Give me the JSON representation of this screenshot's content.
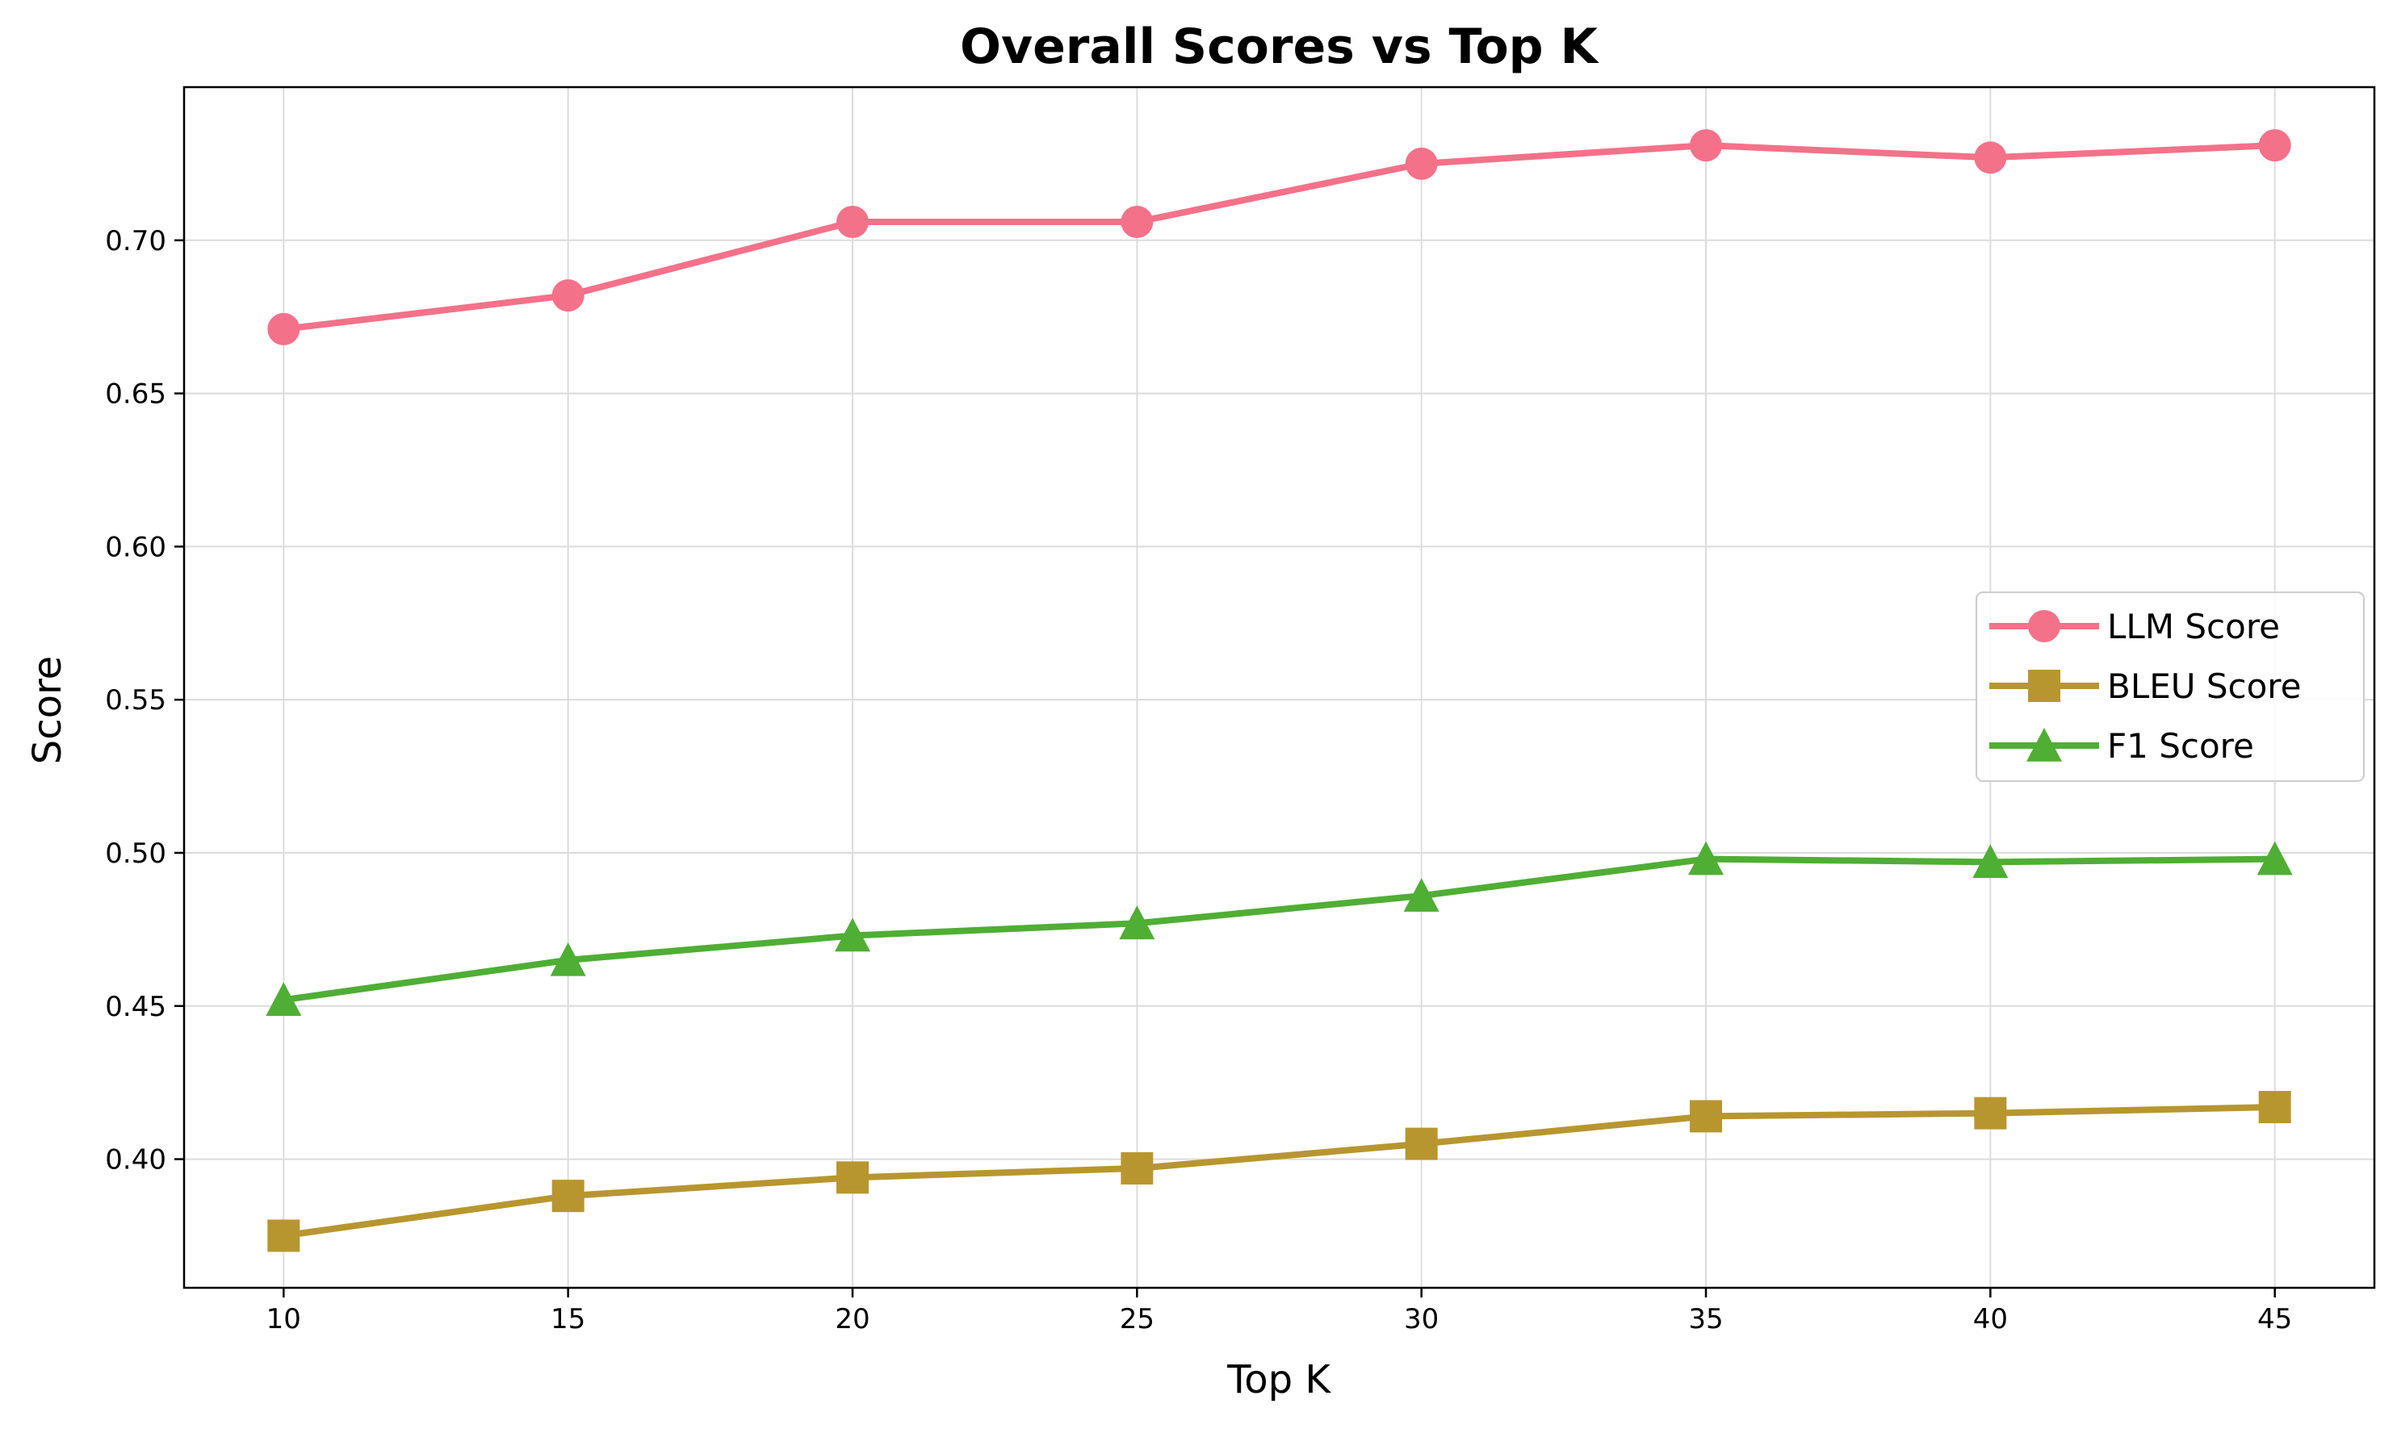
{
  "chart_data": {
    "type": "line",
    "title": "Overall Scores vs Top K",
    "xlabel": "Top K",
    "ylabel": "Score",
    "x": [
      10,
      15,
      20,
      25,
      30,
      35,
      40,
      45
    ],
    "xticks": [
      "10",
      "15",
      "20",
      "25",
      "30",
      "35",
      "40",
      "45"
    ],
    "yticks": [
      "0.40",
      "0.45",
      "0.50",
      "0.55",
      "0.60",
      "0.65",
      "0.70"
    ],
    "xlim": [
      8.25,
      46.75
    ],
    "ylim": [
      0.358,
      0.75
    ],
    "grid": true,
    "legend_position": "center-right",
    "series": [
      {
        "name": "LLM Score",
        "marker": "circle",
        "color": "#f37189",
        "values": [
          0.671,
          0.682,
          0.706,
          0.706,
          0.725,
          0.731,
          0.727,
          0.731
        ]
      },
      {
        "name": "BLEU Score",
        "marker": "square",
        "color": "#b8962f",
        "values": [
          0.375,
          0.388,
          0.394,
          0.397,
          0.405,
          0.414,
          0.415,
          0.417
        ]
      },
      {
        "name": "F1 Score",
        "marker": "triangle",
        "color": "#4fae34",
        "values": [
          0.452,
          0.465,
          0.473,
          0.477,
          0.486,
          0.498,
          0.497,
          0.498
        ]
      }
    ]
  }
}
